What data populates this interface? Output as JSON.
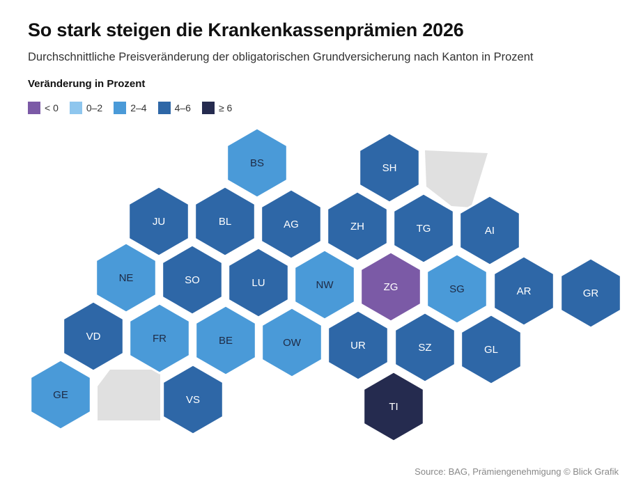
{
  "title": "So stark steigen die Krankenkassenprämien 2026",
  "subtitle": "Durchschnittliche Preisveränderung der obligatorischen Grundversicherung nach Kanton in Prozent",
  "legend": {
    "title": "Veränderung in Prozent",
    "items": [
      {
        "label": "< 0",
        "color": "#7b5aa6"
      },
      {
        "label": "0–2",
        "color": "#8ec6ee"
      },
      {
        "label": "2–4",
        "color": "#4a9ad8"
      },
      {
        "label": "4–6",
        "color": "#2e67a7"
      },
      {
        "label": "≥ 6",
        "color": "#252b4f"
      }
    ]
  },
  "colors": {
    "lt0": "#7b5aa6",
    "c02": "#8ec6ee",
    "c24": "#4a9ad8",
    "c46": "#2e67a7",
    "ge6": "#252b4f",
    "placeholder": "#e0e0e0",
    "label_dark": "#1e2a44",
    "label_light": "#ffffff"
  },
  "cantons": [
    {
      "code": "BS",
      "category": "c24"
    },
    {
      "code": "SH",
      "category": "c46"
    },
    {
      "code": "JU",
      "category": "c46"
    },
    {
      "code": "BL",
      "category": "c46"
    },
    {
      "code": "AG",
      "category": "c46"
    },
    {
      "code": "ZH",
      "category": "c46"
    },
    {
      "code": "TG",
      "category": "c46"
    },
    {
      "code": "AI",
      "category": "c46"
    },
    {
      "code": "NE",
      "category": "c24"
    },
    {
      "code": "SO",
      "category": "c46"
    },
    {
      "code": "LU",
      "category": "c46"
    },
    {
      "code": "NW",
      "category": "c24"
    },
    {
      "code": "ZG",
      "category": "lt0"
    },
    {
      "code": "SG",
      "category": "c24"
    },
    {
      "code": "AR",
      "category": "c46"
    },
    {
      "code": "GR",
      "category": "c46"
    },
    {
      "code": "VD",
      "category": "c46"
    },
    {
      "code": "FR",
      "category": "c24"
    },
    {
      "code": "BE",
      "category": "c24"
    },
    {
      "code": "OW",
      "category": "c24"
    },
    {
      "code": "UR",
      "category": "c46"
    },
    {
      "code": "SZ",
      "category": "c46"
    },
    {
      "code": "GL",
      "category": "c46"
    },
    {
      "code": "GE",
      "category": "c24"
    },
    {
      "code": "VS",
      "category": "c46"
    },
    {
      "code": "TI",
      "category": "ge6"
    }
  ],
  "source": "Source: BAG, Prämiengenehmigung © Blick Grafik"
}
